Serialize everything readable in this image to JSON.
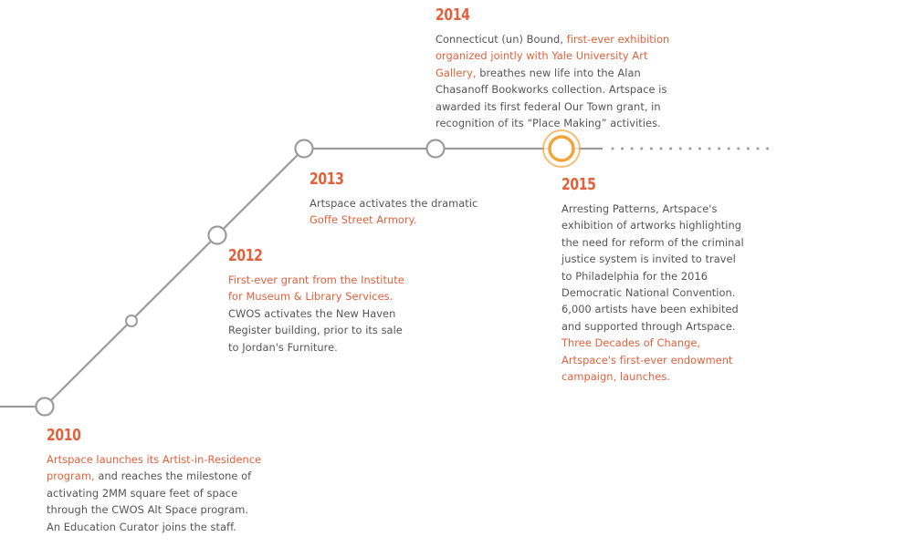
{
  "colors": {
    "accent": "#e2603a",
    "line": "#9b9b9b",
    "highlight_ring": "#f2a53a",
    "text": "#555555"
  },
  "entries": [
    {
      "year": "2010",
      "lines": [
        [
          {
            "t": "Artspace launches its Artist-in-Residence",
            "hl": true
          }
        ],
        [
          {
            "t": "program,",
            "hl": true
          },
          {
            "t": " and reaches the milestone of",
            "hl": false
          }
        ],
        [
          {
            "t": "activating 2MM square feet of space",
            "hl": false
          }
        ],
        [
          {
            "t": "through the CWOS Alt Space program.",
            "hl": false
          }
        ],
        [
          {
            "t": "An Education Curator joins the staff.",
            "hl": false
          }
        ]
      ]
    },
    {
      "year": "2012",
      "lines": [
        [
          {
            "t": "First-ever grant from the Institute",
            "hl": true
          }
        ],
        [
          {
            "t": "for Museum & Library Services.",
            "hl": true
          }
        ],
        [
          {
            "t": "CWOS activates the New Haven",
            "hl": false
          }
        ],
        [
          {
            "t": "Register building, prior to its sale",
            "hl": false
          }
        ],
        [
          {
            "t": "to Jordan's Furniture.",
            "hl": false
          }
        ]
      ]
    },
    {
      "year": "2013",
      "lines": [
        [
          {
            "t": "Artspace activates the dramatic",
            "hl": false
          }
        ],
        [
          {
            "t": "Goffe Street Armory.",
            "hl": true
          }
        ]
      ]
    },
    {
      "year": "2014",
      "lines": [
        [
          {
            "t": "Connecticut (un) Bound, ",
            "hl": false
          },
          {
            "t": "first-ever exhibition",
            "hl": true
          }
        ],
        [
          {
            "t": "organized jointly with Yale University Art",
            "hl": true
          }
        ],
        [
          {
            "t": "Gallery,",
            "hl": true
          },
          {
            "t": " breathes new life into the Alan",
            "hl": false
          }
        ],
        [
          {
            "t": "Chasanoff Bookworks collection. Artspace is",
            "hl": false
          }
        ],
        [
          {
            "t": "awarded its first federal Our Town grant, in",
            "hl": false
          }
        ],
        [
          {
            "t": "recognition of its “Place Making” activities.",
            "hl": false
          }
        ]
      ]
    },
    {
      "year": "2015",
      "lines": [
        [
          {
            "t": "Arresting Patterns, Artspace's",
            "hl": false
          }
        ],
        [
          {
            "t": "exhibition of artworks highlighting",
            "hl": false
          }
        ],
        [
          {
            "t": "the need for reform of the criminal",
            "hl": false
          }
        ],
        [
          {
            "t": "justice system is invited to travel",
            "hl": false
          }
        ],
        [
          {
            "t": "to Philadelphia for the 2016",
            "hl": false
          }
        ],
        [
          {
            "t": "Democratic National Convention.",
            "hl": false
          }
        ],
        [
          {
            "t": "6,000 artists have been exhibited",
            "hl": false
          }
        ],
        [
          {
            "t": "and supported through Artspace.",
            "hl": false
          }
        ],
        [
          {
            "t": "Three Decades of Change,",
            "hl": true
          }
        ],
        [
          {
            "t": "Artspace's first-ever endowment",
            "hl": true
          }
        ],
        [
          {
            "t": "campaign, launches.",
            "hl": true
          }
        ]
      ]
    }
  ]
}
